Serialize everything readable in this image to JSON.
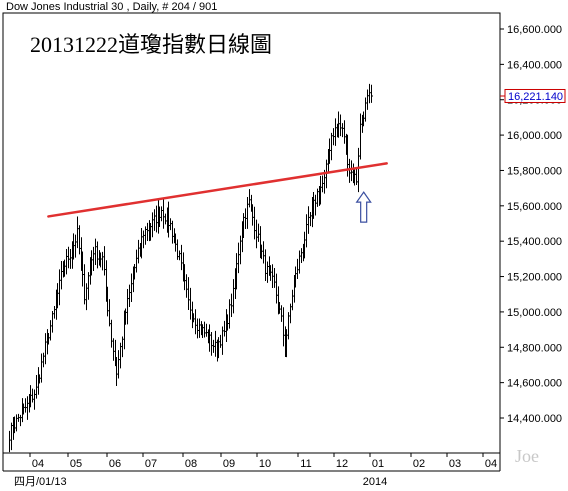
{
  "header": {
    "symbol_line": "Dow Jones Industrial 30 , Daily, # 204 / 901"
  },
  "watermark": "Joe",
  "chart_data": {
    "type": "candlestick",
    "title": "20131222道瓊指數日線圖",
    "y_axis": {
      "min": 14200,
      "max": 16700,
      "ticks": [
        "16,600.000",
        "16,400.000",
        "16,200.000",
        "16,000.000",
        "15,800.000",
        "15,600.000",
        "15,400.000",
        "15,200.000",
        "15,000.000",
        "14,800.000",
        "14,600.000",
        "14,400.000"
      ],
      "tick_values": [
        16600,
        16400,
        16200,
        16000,
        15800,
        15600,
        15400,
        15200,
        15000,
        14800,
        14600,
        14400
      ]
    },
    "x_axis": {
      "month_labels": [
        "04",
        "05",
        "06",
        "07",
        "08",
        "09",
        "10",
        "11",
        "12",
        "01",
        "02",
        "03",
        "04"
      ],
      "start_label": "四月/01/13",
      "year_label": "2014"
    },
    "last_price": {
      "label": "16,221.140",
      "value": 16221.14
    },
    "trendline": {
      "start": {
        "index": 22,
        "value": 15540
      },
      "end": {
        "index": 211,
        "value": 15840
      },
      "color": "#e03030"
    },
    "arrow_annotation": {
      "index": 192,
      "value": 15700
    },
    "price_path": [
      [
        0,
        14310
      ],
      [
        5,
        14400
      ],
      [
        10,
        14470
      ],
      [
        15,
        14560
      ],
      [
        20,
        14800
      ],
      [
        25,
        15000
      ],
      [
        30,
        15250
      ],
      [
        35,
        15350
      ],
      [
        38,
        15440
      ],
      [
        42,
        15100
      ],
      [
        47,
        15350
      ],
      [
        52,
        15300
      ],
      [
        57,
        14850
      ],
      [
        60,
        14660
      ],
      [
        65,
        15000
      ],
      [
        70,
        15250
      ],
      [
        75,
        15450
      ],
      [
        80,
        15500
      ],
      [
        85,
        15580
      ],
      [
        90,
        15490
      ],
      [
        95,
        15300
      ],
      [
        100,
        15050
      ],
      [
        105,
        14930
      ],
      [
        110,
        14870
      ],
      [
        115,
        14800
      ],
      [
        120,
        14880
      ],
      [
        125,
        15100
      ],
      [
        130,
        15500
      ],
      [
        134,
        15620
      ],
      [
        138,
        15450
      ],
      [
        143,
        15250
      ],
      [
        148,
        15150
      ],
      [
        152,
        14950
      ],
      [
        154,
        14800
      ],
      [
        158,
        15100
      ],
      [
        162,
        15300
      ],
      [
        167,
        15500
      ],
      [
        172,
        15670
      ],
      [
        176,
        15740
      ],
      [
        180,
        16000
      ],
      [
        184,
        16060
      ],
      [
        187,
        16000
      ],
      [
        190,
        15800
      ],
      [
        194,
        15750
      ],
      [
        196,
        16050
      ],
      [
        200,
        16200
      ],
      [
        202,
        16221
      ]
    ]
  }
}
